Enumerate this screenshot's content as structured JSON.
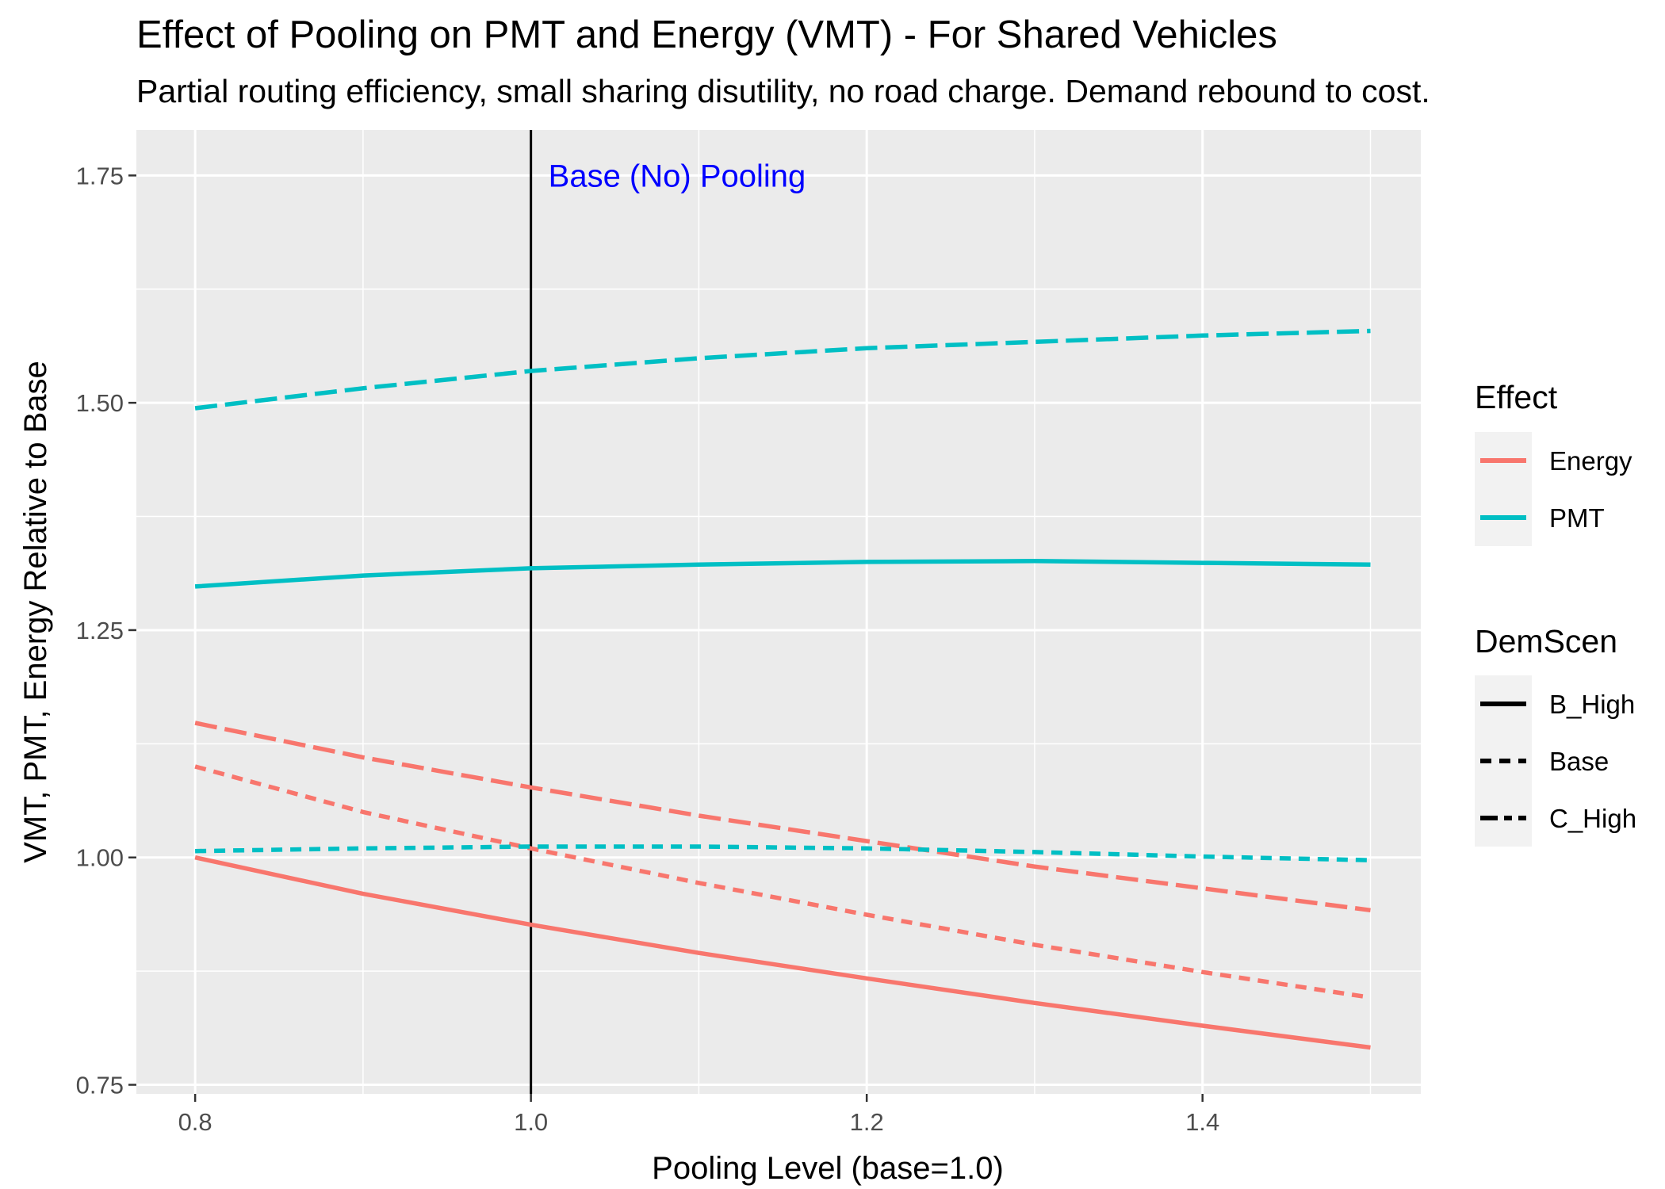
{
  "chart_data": {
    "type": "line",
    "title": "Effect of Pooling on PMT and Energy (VMT) - For Shared Vehicles",
    "subtitle": "Partial routing efficiency, small sharing disutility, no road charge. Demand rebound to cost.",
    "xlabel": "Pooling Level (base=1.0)",
    "ylabel": "VMT, PMT, Energy Relative to Base",
    "xlim": [
      0.765,
      1.53
    ],
    "ylim": [
      0.74,
      1.8
    ],
    "x_ticks": [
      "0.8",
      "1.0",
      "1.2",
      "1.4"
    ],
    "y_ticks": [
      "0.75",
      "1.00",
      "1.25",
      "1.50",
      "1.75"
    ],
    "grid": true,
    "legend_position": "right",
    "legends": {
      "effect": {
        "title": "Effect",
        "entries": [
          "Energy",
          "PMT"
        ]
      },
      "demscen": {
        "title": "DemScen",
        "entries": [
          "B_High",
          "Base",
          "C_High"
        ]
      }
    },
    "colors": {
      "Energy": "#F8766D",
      "PMT": "#00BFC4",
      "panel": "#EBEBEB",
      "grid": "#FFFFFF",
      "vline": "#000000",
      "annotation": "#0000FF"
    },
    "x": [
      0.8,
      0.9,
      1.0,
      1.1,
      1.2,
      1.3,
      1.4,
      1.5
    ],
    "series": [
      {
        "name": "Energy",
        "effect": "Energy",
        "demscen": "B_High",
        "values": [
          1.0,
          0.96,
          0.926,
          0.895,
          0.867,
          0.84,
          0.815,
          0.791
        ]
      },
      {
        "name": "Energy",
        "effect": "Energy",
        "demscen": "Base",
        "values": [
          1.1,
          1.05,
          1.01,
          0.972,
          0.937,
          0.904,
          0.874,
          0.846
        ]
      },
      {
        "name": "Energy",
        "effect": "Energy",
        "demscen": "C_High",
        "values": [
          1.148,
          1.11,
          1.077,
          1.046,
          1.018,
          0.99,
          0.966,
          0.942
        ]
      },
      {
        "name": "PMT",
        "effect": "PMT",
        "demscen": "B_High",
        "values": [
          1.298,
          1.31,
          1.318,
          1.322,
          1.325,
          1.326,
          1.324,
          1.322
        ]
      },
      {
        "name": "PMT",
        "effect": "PMT",
        "demscen": "Base",
        "values": [
          1.007,
          1.01,
          1.012,
          1.012,
          1.01,
          1.006,
          1.001,
          0.997
        ]
      },
      {
        "name": "PMT",
        "effect": "PMT",
        "demscen": "C_High",
        "values": [
          1.494,
          1.516,
          1.535,
          1.549,
          1.56,
          1.567,
          1.574,
          1.579
        ]
      }
    ],
    "annotations": [
      {
        "text": "Base (No) Pooling",
        "x": 1.0,
        "vline_x": 1.0
      }
    ]
  }
}
